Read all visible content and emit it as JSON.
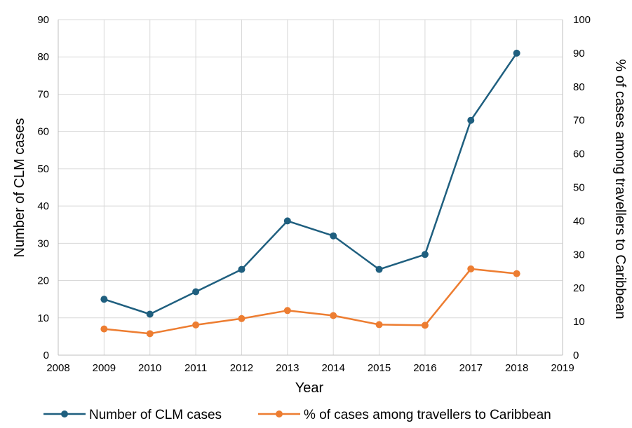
{
  "chart_data": {
    "type": "line",
    "title": "",
    "xlabel": "Year",
    "ylabel": "Number of CLM cases",
    "y2label": "% of cases among travellers to Caribbean",
    "xlim": [
      2008,
      2019
    ],
    "ylim": [
      0,
      90
    ],
    "y2lim": [
      0,
      100
    ],
    "x_ticks": [
      "2008",
      "2009",
      "2010",
      "2011",
      "2012",
      "2013",
      "2014",
      "2015",
      "2016",
      "2017",
      "2018",
      "2019"
    ],
    "y_ticks": [
      "0",
      "10",
      "20",
      "30",
      "40",
      "50",
      "60",
      "70",
      "80",
      "90"
    ],
    "y2_ticks": [
      "0",
      "10",
      "20",
      "30",
      "40",
      "50",
      "60",
      "70",
      "80",
      "90",
      "100"
    ],
    "x": [
      2009,
      2010,
      2011,
      2012,
      2013,
      2014,
      2015,
      2016,
      2017,
      2018
    ],
    "series": [
      {
        "name": "Number of CLM cases",
        "axis": "left",
        "color": "#1f5f7f",
        "values": [
          15,
          11,
          17,
          23,
          36,
          32,
          23,
          27,
          63,
          81
        ]
      },
      {
        "name": "% of cases among travellers to Caribbean",
        "axis": "right",
        "color": "#ed7d31",
        "values": [
          7.8,
          6.4,
          9.0,
          10.9,
          13.3,
          11.8,
          9.1,
          8.9,
          25.7,
          24.3
        ]
      }
    ],
    "legend_position": "bottom"
  }
}
